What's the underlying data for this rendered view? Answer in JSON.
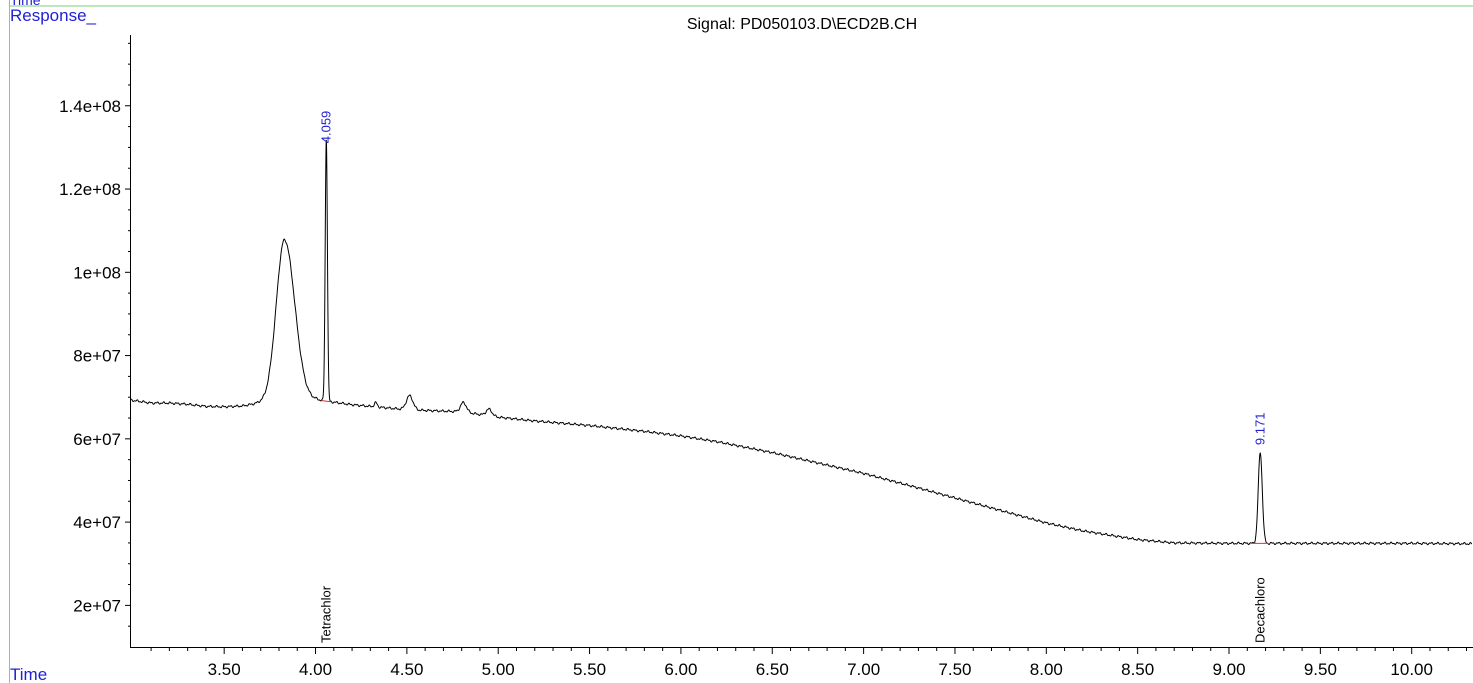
{
  "window": {
    "corner_label": "Time"
  },
  "chart_data": {
    "type": "line",
    "title": "Signal: PD050103.D\\ECD2B.CH",
    "ylabel": "Response_",
    "xlabel": "Time",
    "xlim": [
      2.99,
      10.33
    ],
    "ylim": [
      10000000,
      157000000
    ],
    "x_ticks": [
      3.5,
      4.0,
      4.5,
      5.0,
      5.5,
      6.0,
      6.5,
      7.0,
      7.5,
      8.0,
      8.5,
      9.0,
      9.5,
      10.0
    ],
    "x_tick_labels": [
      "3.50",
      "4.00",
      "4.50",
      "5.00",
      "5.50",
      "6.00",
      "6.50",
      "7.00",
      "7.50",
      "8.00",
      "8.50",
      "9.00",
      "9.50",
      "10.00"
    ],
    "y_ticks": [
      20000000,
      40000000,
      60000000,
      80000000,
      100000000,
      120000000,
      140000000
    ],
    "y_tick_labels": [
      "2e+07",
      "4e+07",
      "6e+07",
      "8e+07",
      "1e+08",
      "1.2e+08",
      "1.4e+08"
    ],
    "baseline": [
      [
        2.99,
        69300000
      ],
      [
        3.1,
        68600000
      ],
      [
        3.2,
        68600000
      ],
      [
        3.3,
        68300000
      ],
      [
        3.4,
        67800000
      ],
      [
        3.5,
        67700000
      ],
      [
        3.6,
        67900000
      ],
      [
        3.7,
        68700000
      ],
      [
        4.0,
        69400000
      ],
      [
        4.2,
        68200000
      ],
      [
        4.5,
        67000000
      ],
      [
        4.8,
        66500000
      ],
      [
        5.0,
        65200000
      ],
      [
        5.2,
        64300000
      ],
      [
        5.5,
        63200000
      ],
      [
        5.8,
        61800000
      ],
      [
        6.0,
        60700000
      ],
      [
        6.2,
        59300000
      ],
      [
        6.5,
        56700000
      ],
      [
        6.8,
        53700000
      ],
      [
        7.0,
        51700000
      ],
      [
        7.3,
        48200000
      ],
      [
        7.5,
        45800000
      ],
      [
        7.8,
        42200000
      ],
      [
        8.0,
        39800000
      ],
      [
        8.2,
        37900000
      ],
      [
        8.5,
        35800000
      ],
      [
        8.7,
        35000000
      ],
      [
        9.0,
        34900000
      ],
      [
        9.5,
        34900000
      ],
      [
        10.0,
        34900000
      ],
      [
        10.33,
        34800000
      ]
    ],
    "peaks": [
      {
        "rt": 3.83,
        "height": 38800000,
        "width": 0.045
      },
      {
        "rt": 4.059,
        "height": 63000000,
        "width": 0.006,
        "rt_label": "4.059",
        "compound": "Tetrachlor",
        "label_value": 131000000
      },
      {
        "rt": 4.33,
        "height": 1000000,
        "width": 0.008
      },
      {
        "rt": 4.515,
        "height": 3400000,
        "width": 0.018
      },
      {
        "rt": 4.81,
        "height": 2300000,
        "width": 0.016
      },
      {
        "rt": 4.95,
        "height": 1600000,
        "width": 0.016
      },
      {
        "rt": 9.171,
        "height": 21800000,
        "width": 0.011,
        "rt_label": "9.171",
        "compound": "Decachloro",
        "label_value": 58500000
      }
    ]
  }
}
